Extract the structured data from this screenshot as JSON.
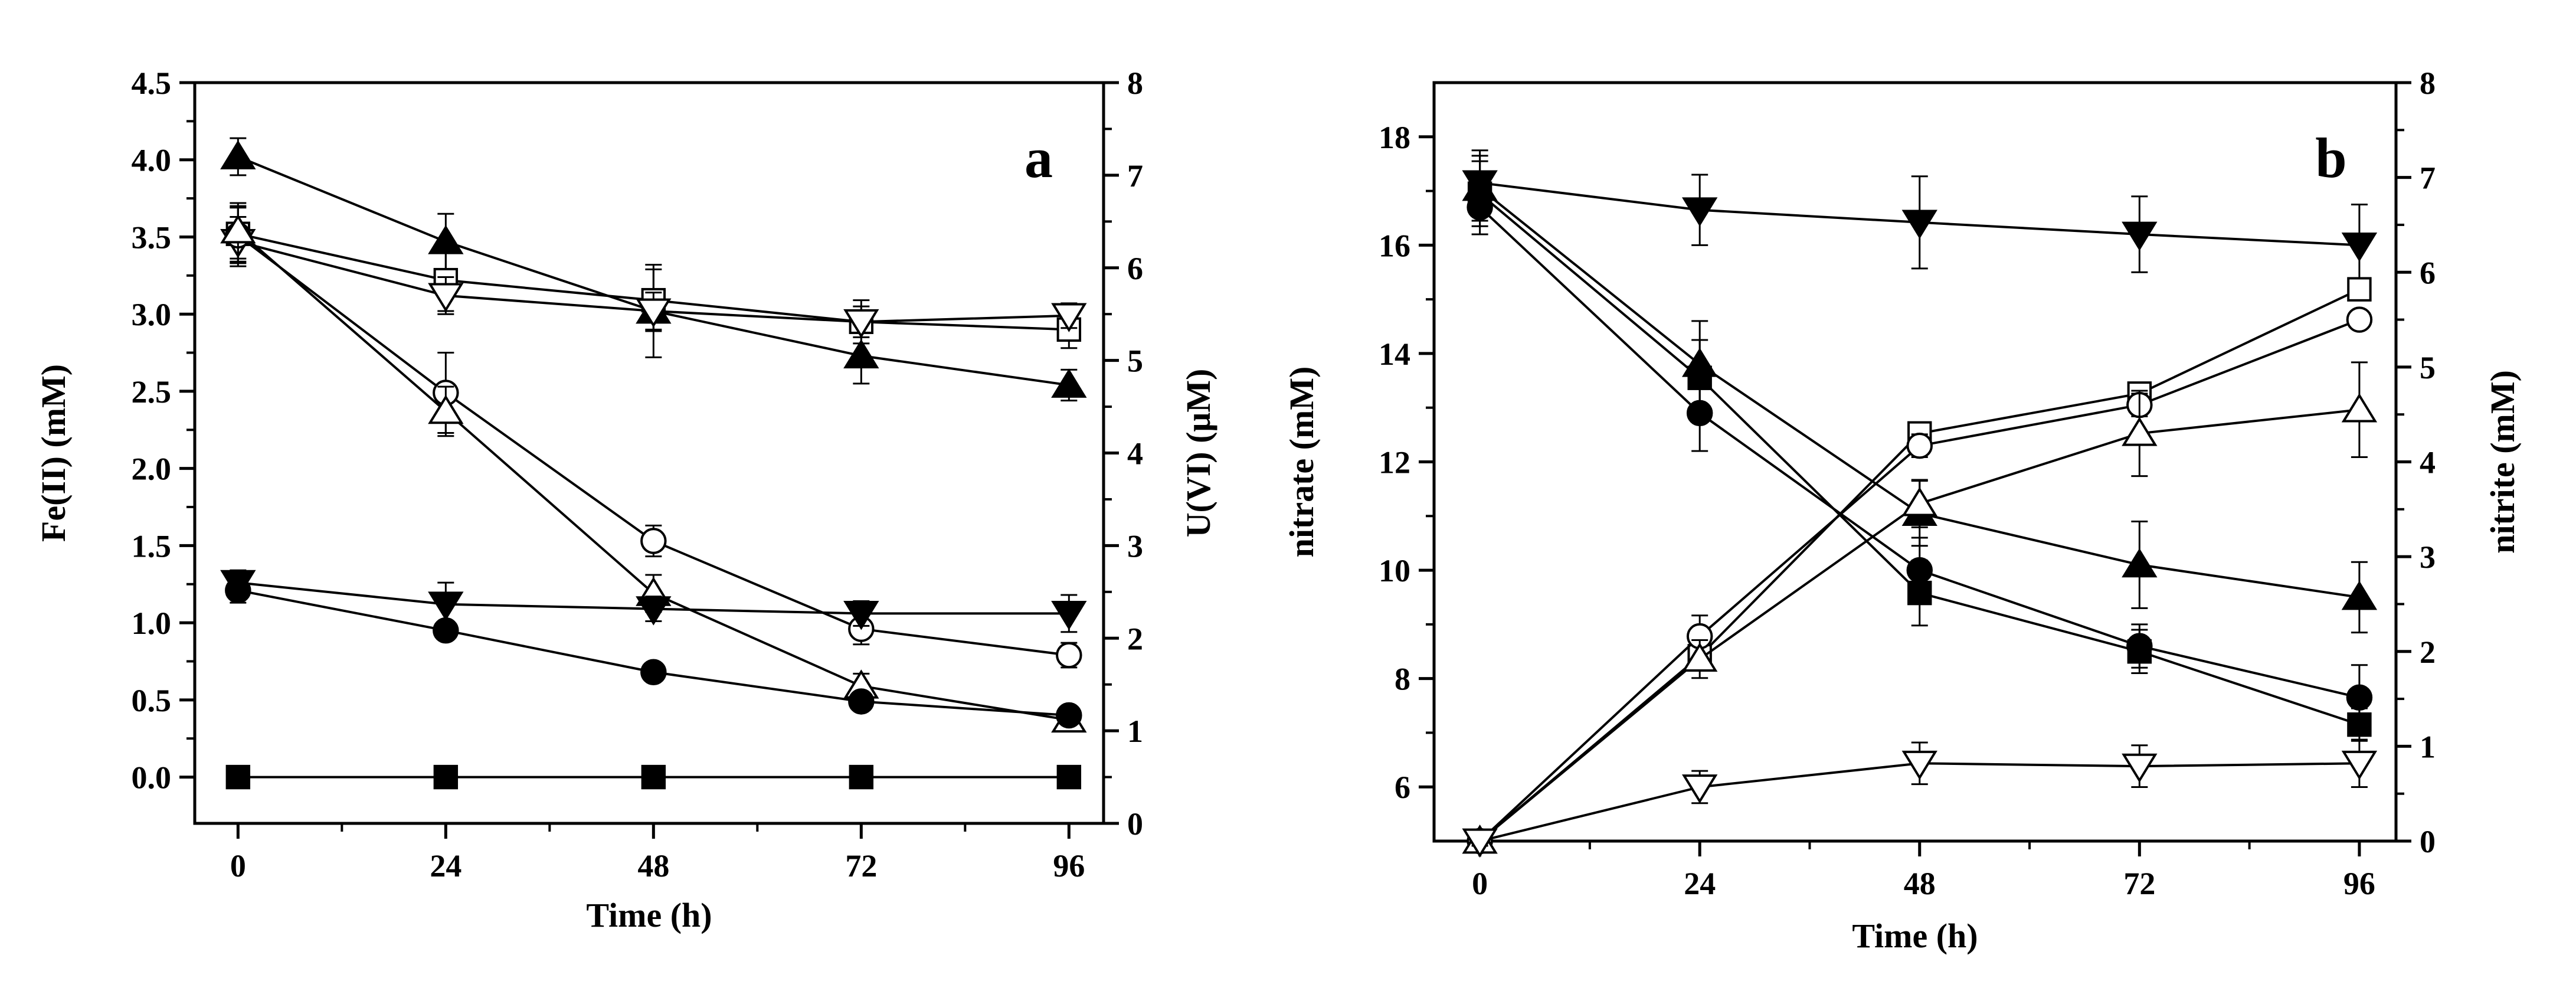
{
  "chart_data": [
    {
      "type": "line",
      "panel_label": "a",
      "xlabel": "Time (h)",
      "ylabel": "Fe(II) (mM)",
      "y2label": "U(VI) (μM)",
      "x_ticks": [
        0,
        24,
        48,
        72,
        96
      ],
      "xlim": [
        -5,
        100
      ],
      "ylim": [
        -0.3,
        4.5
      ],
      "y_ticks": [
        0.0,
        0.5,
        1.0,
        1.5,
        2.0,
        2.5,
        3.0,
        3.5,
        4.0,
        4.5
      ],
      "y_tick_labels": [
        "0.0",
        "0.5",
        "1.0",
        "1.5",
        "2.0",
        "2.5",
        "3.0",
        "3.5",
        "4.0",
        "4.5"
      ],
      "y2lim": [
        0,
        8
      ],
      "y2_ticks": [
        0,
        1,
        2,
        3,
        4,
        5,
        6,
        7,
        8
      ],
      "y2_tick_labels": [
        "0",
        "1",
        "2",
        "3",
        "4",
        "5",
        "6",
        "7",
        "8"
      ],
      "series": [
        {
          "name": "filled-up-triangle",
          "marker": "triangle-up",
          "filled": true,
          "axis": "left",
          "x": [
            0,
            24,
            48,
            72,
            96
          ],
          "y": [
            4.02,
            3.47,
            3.02,
            2.73,
            2.54
          ],
          "err": [
            0.12,
            0.18,
            0.3,
            0.18,
            0.1
          ]
        },
        {
          "name": "open-square",
          "marker": "square",
          "filled": false,
          "axis": "left",
          "x": [
            0,
            24,
            48,
            72,
            96
          ],
          "y": [
            3.52,
            3.22,
            3.09,
            2.95,
            2.9
          ],
          "err": [
            0.18,
            0.2,
            0.2,
            0.14,
            0.12
          ]
        },
        {
          "name": "open-down-triangle",
          "marker": "triangle-down",
          "filled": false,
          "axis": "left",
          "x": [
            0,
            24,
            48,
            72,
            96
          ],
          "y": [
            3.47,
            3.12,
            3.02,
            2.95,
            2.99
          ],
          "err": [
            0.16,
            0.12,
            0.12,
            0.1,
            0.08
          ]
        },
        {
          "name": "open-circle",
          "marker": "circle",
          "filled": false,
          "axis": "left",
          "x": [
            0,
            24,
            48,
            72,
            96
          ],
          "y": [
            3.51,
            2.49,
            1.53,
            0.96,
            0.79
          ],
          "err": [
            0.18,
            0.26,
            0.1,
            0.1,
            0.08
          ]
        },
        {
          "name": "open-up-triangle",
          "marker": "triangle-up",
          "filled": false,
          "axis": "left",
          "x": [
            0,
            24,
            48,
            72,
            96
          ],
          "y": [
            3.54,
            2.37,
            1.19,
            0.59,
            0.37
          ],
          "err": [
            0.18,
            0.16,
            0.12,
            0.08,
            0.06
          ]
        },
        {
          "name": "filled-down-triangle",
          "marker": "triangle-down",
          "filled": true,
          "axis": "left",
          "x": [
            0,
            24,
            48,
            72,
            96
          ],
          "y": [
            1.26,
            1.12,
            1.09,
            1.06,
            1.06
          ],
          "err": [
            0.08,
            0.14,
            0.08,
            0.08,
            0.12
          ]
        },
        {
          "name": "filled-circle",
          "marker": "circle",
          "filled": true,
          "axis": "left",
          "x": [
            0,
            24,
            48,
            72,
            96
          ],
          "y": [
            1.21,
            0.95,
            0.68,
            0.49,
            0.4
          ],
          "err": [
            0.08,
            0.04,
            0.04,
            0.04,
            0.04
          ]
        },
        {
          "name": "filled-square",
          "marker": "square",
          "filled": true,
          "axis": "left",
          "x": [
            0,
            24,
            48,
            72,
            96
          ],
          "y": [
            0.0,
            0.0,
            0.0,
            0.0,
            0.0
          ],
          "err": [
            0,
            0,
            0,
            0,
            0
          ]
        }
      ]
    },
    {
      "type": "line",
      "panel_label": "b",
      "xlabel": "Time (h)",
      "ylabel": "nitrate (mM)",
      "y2label": "nitrite (mM)",
      "x_ticks": [
        0,
        24,
        48,
        72,
        96
      ],
      "xlim": [
        -5,
        100
      ],
      "ylim": [
        5,
        19
      ],
      "y_ticks": [
        6,
        8,
        10,
        12,
        14,
        16,
        18
      ],
      "y_tick_labels": [
        "6",
        "8",
        "10",
        "12",
        "14",
        "16",
        "18"
      ],
      "y2lim": [
        0,
        8
      ],
      "y2_ticks": [
        0,
        1,
        2,
        3,
        4,
        5,
        6,
        7,
        8
      ],
      "y2_tick_labels": [
        "0",
        "1",
        "2",
        "3",
        "4",
        "5",
        "6",
        "7",
        "8"
      ],
      "series": [
        {
          "name": "filled-down-triangle",
          "marker": "triangle-down",
          "filled": true,
          "axis": "left",
          "x": [
            0,
            24,
            48,
            72,
            96
          ],
          "y": [
            17.15,
            16.65,
            16.42,
            16.2,
            16.0
          ],
          "err": [
            0.6,
            0.65,
            0.85,
            0.7,
            0.75
          ]
        },
        {
          "name": "filled-up-triangle",
          "marker": "triangle-up",
          "filled": true,
          "axis": "left",
          "x": [
            0,
            24,
            48,
            72,
            96
          ],
          "y": [
            17.05,
            13.8,
            11.05,
            10.1,
            9.5
          ],
          "err": [
            0.6,
            0.8,
            0.6,
            0.8,
            0.65
          ]
        },
        {
          "name": "filled-square",
          "marker": "square",
          "filled": true,
          "axis": "left",
          "x": [
            0,
            24,
            48,
            72,
            96
          ],
          "y": [
            16.95,
            13.55,
            9.58,
            8.5,
            7.15
          ],
          "err": [
            0.6,
            0.7,
            0.6,
            0.4,
            0.3
          ]
        },
        {
          "name": "filled-circle",
          "marker": "circle",
          "filled": true,
          "axis": "left",
          "x": [
            0,
            24,
            48,
            72,
            96
          ],
          "y": [
            16.7,
            12.9,
            10.0,
            8.6,
            7.65
          ],
          "err": [
            0.5,
            0.7,
            0.6,
            0.4,
            0.6
          ]
        },
        {
          "name": "open-square",
          "marker": "square",
          "filled": false,
          "axis": "right",
          "x": [
            0,
            24,
            48,
            72,
            96
          ],
          "y": [
            0.0,
            1.95,
            4.3,
            4.72,
            5.82
          ],
          "err": [
            0.05,
            0.12,
            0.1,
            0.08,
            0.05
          ]
        },
        {
          "name": "open-circle",
          "marker": "circle",
          "filled": false,
          "axis": "right",
          "x": [
            0,
            24,
            48,
            72,
            96
          ],
          "y": [
            0.0,
            2.16,
            4.17,
            4.6,
            5.5
          ],
          "err": [
            0.05,
            0.22,
            0.12,
            0.12,
            0.05
          ]
        },
        {
          "name": "open-up-triangle",
          "marker": "triangle-up",
          "filled": false,
          "axis": "right",
          "x": [
            0,
            24,
            48,
            72,
            96
          ],
          "y": [
            0.0,
            1.92,
            3.56,
            4.3,
            4.55
          ],
          "err": [
            0.05,
            0.2,
            0.25,
            0.45,
            0.5
          ]
        },
        {
          "name": "open-down-triangle",
          "marker": "triangle-down",
          "filled": false,
          "axis": "right",
          "x": [
            0,
            24,
            48,
            72,
            96
          ],
          "y": [
            0.0,
            0.57,
            0.82,
            0.79,
            0.82
          ],
          "err": [
            0.05,
            0.17,
            0.22,
            0.22,
            0.25
          ]
        }
      ]
    }
  ]
}
